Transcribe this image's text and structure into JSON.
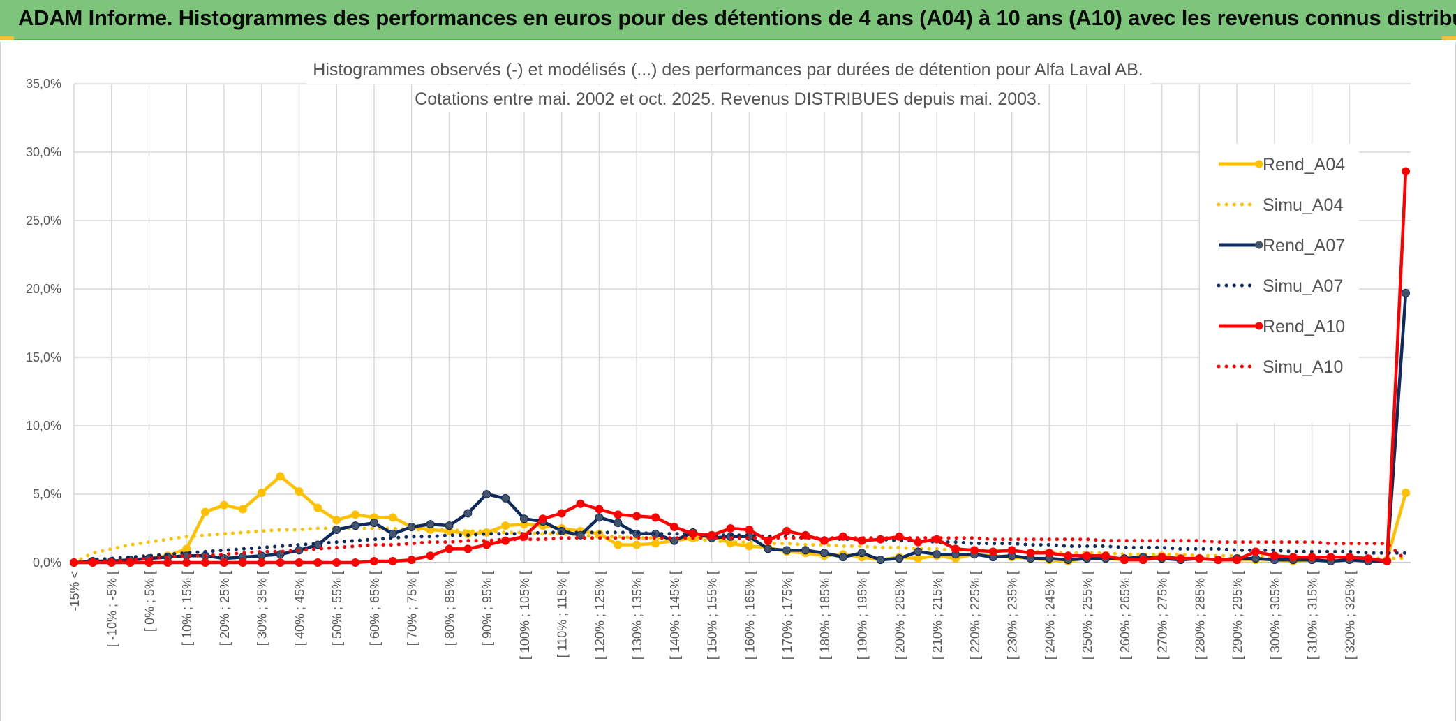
{
  "banner": {
    "title": "ADAM Informe. Histogrammes des performances en euros pour des détentions de 4 ans (A04) à 10 ans (A10) avec les revenus connus distribués",
    "background": "#7dc57a"
  },
  "chart_data": {
    "type": "line",
    "title_line1": "Histogrammes observés (-) et modélisés (...) des performances par durées de détention pour Alfa Laval AB.",
    "title_line2": "Cotations entre mai. 2002 et oct. 2025. Revenus DISTRIBUES depuis mai. 2003.",
    "xlabel": "",
    "ylabel": "",
    "ylim": [
      0,
      35
    ],
    "yticks": [
      "0,0%",
      "5,0%",
      "10,0%",
      "15,0%",
      "20,0%",
      "25,0%",
      "30,0%",
      "35,0%"
    ],
    "grid": true,
    "legend_position": "right",
    "x_labels": [
      "-15% <",
      "[ -10% ; -5% [",
      "[ 0% ; 5% [",
      "[ 10% ; 15% [",
      "[ 20% ; 25% [",
      "[ 30% ; 35% [",
      "[ 40% ; 45% [",
      "[ 50% ; 55% [",
      "[ 60% ; 65% [",
      "[ 70% ; 75% [",
      "[ 80% ; 85% [",
      "[ 90% ; 95% [",
      "[ 100% ; 105% [",
      "[ 110% ; 115% [",
      "[ 120% ; 125% [",
      "[ 130% ; 135% [",
      "[ 140% ; 145% [",
      "[ 150% ; 155% [",
      "[ 160% ; 165% [",
      "[ 170% ; 175% [",
      "[ 180% ; 185% [",
      "[ 190% ; 195% [",
      "[ 200% ; 205% [",
      "[ 210% ; 215% [",
      "[ 220% ; 225% [",
      "[ 230% ; 235% [",
      "[ 240% ; 245% [",
      "[ 250% ; 255% [",
      "[ 260% ; 265% [",
      "[ 270% ; 275% [",
      "[ 280% ; 285% [",
      "[ 290% ; 295% [",
      "[ 300% ; 305% [",
      "[ 310% ; 315% [",
      "[ 320% ; 325% ["
    ],
    "series": [
      {
        "name": "Rend_A04",
        "style": "solid",
        "color": "#ffc000",
        "values": [
          0,
          0,
          0.1,
          0.2,
          0.3,
          0.5,
          1.0,
          3.7,
          4.2,
          3.9,
          5.1,
          6.3,
          5.2,
          4.0,
          3.1,
          3.5,
          3.3,
          3.3,
          2.6,
          2.4,
          2.3,
          2.1,
          2.2,
          2.7,
          2.8,
          2.7,
          2.5,
          2.3,
          2.1,
          1.3,
          1.3,
          1.4,
          1.6,
          1.8,
          2.0,
          1.4,
          1.2,
          1.1,
          0.8,
          0.7,
          0.5,
          0.6,
          0.4,
          0.2,
          0.4,
          0.3,
          0.5,
          0.3,
          0.6,
          0.5,
          0.4,
          0.3,
          0.2,
          0.1,
          0.3,
          0.3,
          0.2,
          0.3,
          0.5,
          0.2,
          0.3,
          0.2,
          0.2,
          0.2,
          0.2,
          0.1,
          0.2,
          0.1,
          0.2,
          0.1,
          0.2,
          5.1
        ]
      },
      {
        "name": "Simu_A04",
        "style": "dotted",
        "color": "#ffc000",
        "values": [
          0,
          0.7,
          1.0,
          1.3,
          1.5,
          1.7,
          1.9,
          2.0,
          2.1,
          2.2,
          2.3,
          2.4,
          2.4,
          2.5,
          2.5,
          2.5,
          2.5,
          2.5,
          2.4,
          2.4,
          2.4,
          2.3,
          2.3,
          2.2,
          2.2,
          2.1,
          2.1,
          2.0,
          1.9,
          1.9,
          1.8,
          1.8,
          1.7,
          1.7,
          1.6,
          1.5,
          1.5,
          1.4,
          1.4,
          1.3,
          1.3,
          1.2,
          1.2,
          1.1,
          1.1,
          1.0,
          1.0,
          0.9,
          0.9,
          0.9,
          0.8,
          0.8,
          0.8,
          0.7,
          0.7,
          0.7,
          0.6,
          0.6,
          0.6,
          0.6,
          0.5,
          0.5,
          0.5,
          0.5,
          0.4,
          0.4,
          0.4,
          0.4,
          0.4,
          0.3,
          0.3,
          0.3
        ]
      },
      {
        "name": "Rend_A07",
        "style": "solid",
        "color": "#0f2a5c",
        "values": [
          0,
          0.1,
          0.1,
          0.2,
          0.3,
          0.4,
          0.5,
          0.5,
          0.3,
          0.4,
          0.5,
          0.6,
          0.9,
          1.3,
          2.4,
          2.7,
          2.9,
          2.1,
          2.6,
          2.8,
          2.7,
          3.6,
          5.0,
          4.7,
          3.2,
          3.0,
          2.3,
          2.0,
          3.3,
          2.9,
          2.1,
          2.1,
          1.6,
          2.2,
          1.8,
          1.9,
          1.9,
          1.0,
          0.9,
          0.9,
          0.7,
          0.4,
          0.7,
          0.2,
          0.3,
          0.8,
          0.6,
          0.6,
          0.6,
          0.4,
          0.5,
          0.3,
          0.3,
          0.2,
          0.3,
          0.3,
          0.3,
          0.4,
          0.3,
          0.2,
          0.3,
          0.2,
          0.3,
          0.3,
          0.2,
          0.2,
          0.2,
          0.1,
          0.2,
          0.1,
          0.1,
          19.7
        ]
      },
      {
        "name": "Simu_A07",
        "style": "dotted",
        "color": "#0f2a5c",
        "values": [
          0,
          0.2,
          0.3,
          0.4,
          0.5,
          0.6,
          0.7,
          0.8,
          0.9,
          1.0,
          1.1,
          1.2,
          1.3,
          1.4,
          1.5,
          1.6,
          1.7,
          1.8,
          1.9,
          1.9,
          2.0,
          2.0,
          2.1,
          2.1,
          2.1,
          2.2,
          2.2,
          2.2,
          2.2,
          2.2,
          2.2,
          2.1,
          2.1,
          2.1,
          2.0,
          2.0,
          2.0,
          1.9,
          1.9,
          1.8,
          1.8,
          1.7,
          1.7,
          1.7,
          1.6,
          1.6,
          1.5,
          1.5,
          1.4,
          1.4,
          1.4,
          1.3,
          1.3,
          1.2,
          1.2,
          1.2,
          1.1,
          1.1,
          1.1,
          1.0,
          1.0,
          1.0,
          0.9,
          0.9,
          0.9,
          0.8,
          0.8,
          0.8,
          0.8,
          0.7,
          0.7,
          0.7
        ]
      },
      {
        "name": "Rend_A10",
        "style": "solid",
        "color": "#ff0000",
        "values": [
          0,
          0,
          0,
          0,
          0,
          0,
          0,
          0,
          0,
          0,
          0,
          0,
          0,
          0,
          0,
          0,
          0.1,
          0.1,
          0.2,
          0.5,
          1.0,
          1.0,
          1.3,
          1.6,
          1.9,
          3.2,
          3.6,
          4.3,
          3.9,
          3.5,
          3.4,
          3.3,
          2.6,
          2.1,
          2.0,
          2.5,
          2.4,
          1.6,
          2.3,
          2.0,
          1.6,
          1.9,
          1.6,
          1.7,
          1.9,
          1.5,
          1.7,
          1.0,
          0.9,
          0.8,
          0.9,
          0.7,
          0.7,
          0.5,
          0.5,
          0.5,
          0.2,
          0.2,
          0.4,
          0.3,
          0.3,
          0.2,
          0.2,
          0.8,
          0.5,
          0.4,
          0.4,
          0.4,
          0.4,
          0.3,
          0.1,
          28.6
        ]
      },
      {
        "name": "Simu_A10",
        "style": "dotted",
        "color": "#ff0000",
        "values": [
          0,
          0.1,
          0.1,
          0.2,
          0.3,
          0.4,
          0.5,
          0.5,
          0.6,
          0.7,
          0.8,
          0.8,
          0.9,
          1.0,
          1.1,
          1.2,
          1.3,
          1.3,
          1.4,
          1.5,
          1.5,
          1.6,
          1.6,
          1.7,
          1.7,
          1.7,
          1.8,
          1.8,
          1.8,
          1.8,
          1.8,
          1.8,
          1.8,
          1.8,
          1.8,
          1.8,
          1.8,
          1.8,
          1.8,
          1.8,
          1.8,
          1.8,
          1.8,
          1.8,
          1.8,
          1.8,
          1.8,
          1.8,
          1.8,
          1.7,
          1.7,
          1.7,
          1.7,
          1.7,
          1.7,
          1.6,
          1.6,
          1.6,
          1.6,
          1.6,
          1.6,
          1.5,
          1.5,
          1.5,
          1.5,
          1.5,
          1.5,
          1.4,
          1.4,
          1.4,
          1.4,
          0.2
        ]
      }
    ]
  }
}
